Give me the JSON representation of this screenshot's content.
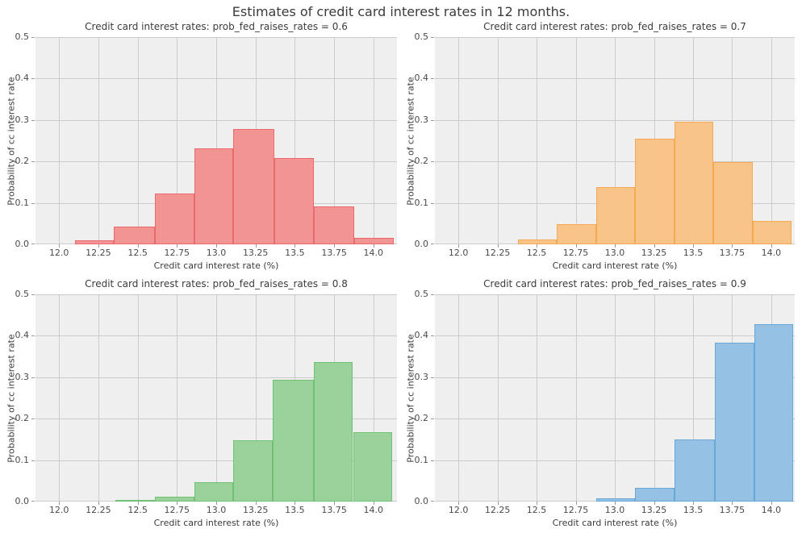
{
  "figure": {
    "title": "Estimates of credit card interest rates in 12 months.",
    "colors": {
      "background": "#ffffff",
      "plot_background": "#efefef",
      "grid": "#cbcbcb",
      "title_text": "#3b3b3b",
      "tick_text": "#4a4a4a"
    }
  },
  "axes": {
    "xlabel": "Credit card interest rate (%)",
    "ylabel": "Probability of cc interest rate",
    "xlim": [
      11.85,
      14.15
    ],
    "ylim": [
      0,
      0.5
    ],
    "xtick_values": [
      12.0,
      12.25,
      12.5,
      12.75,
      13.0,
      13.25,
      13.5,
      13.75,
      14.0
    ],
    "xtick_labels": [
      "12.0",
      "12.25",
      "12.5",
      "12.75",
      "13.0",
      "13.25",
      "13.5",
      "13.75",
      "14.0"
    ],
    "ytick_values": [
      0.0,
      0.1,
      0.2,
      0.3,
      0.4,
      0.5
    ],
    "ytick_labels": [
      "0.0",
      "0.1",
      "0.2",
      "0.3",
      "0.4",
      "0.5"
    ],
    "grid": true
  },
  "chart_data": [
    {
      "type": "histogram",
      "title": "Credit card interest rates: prob_fed_raises_rates = 0.6",
      "prob_fed_raises_rates": 0.6,
      "fill_color": "#f29394",
      "edge_color": "#ea696c",
      "bin_edges": [
        12.1,
        12.35,
        12.61,
        12.86,
        13.11,
        13.37,
        13.62,
        13.88,
        14.13
      ],
      "values": [
        0.01,
        0.042,
        0.123,
        0.232,
        0.278,
        0.209,
        0.091,
        0.016
      ],
      "xlabel": "Credit card interest rate (%)",
      "ylabel": "Probability of cc interest rate",
      "xlim": [
        11.85,
        14.15
      ],
      "ylim": [
        0,
        0.5
      ]
    },
    {
      "type": "histogram",
      "title": "Credit card interest rates: prob_fed_raises_rates = 0.7",
      "prob_fed_raises_rates": 0.7,
      "fill_color": "#f8c489",
      "edge_color": "#f5a952",
      "bin_edges": [
        12.38,
        12.63,
        12.88,
        13.13,
        13.38,
        13.63,
        13.88,
        14.13
      ],
      "values": [
        0.012,
        0.048,
        0.138,
        0.254,
        0.295,
        0.198,
        0.057
      ],
      "xlabel": "Credit card interest rate (%)",
      "ylabel": "Probability of cc interest rate",
      "xlim": [
        11.85,
        14.15
      ],
      "ylim": [
        0,
        0.5
      ]
    },
    {
      "type": "histogram",
      "title": "Credit card interest rates: prob_fed_raises_rates = 0.8",
      "prob_fed_raises_rates": 0.8,
      "fill_color": "#9bd29b",
      "edge_color": "#71c175",
      "bin_edges": [
        12.36,
        12.61,
        12.86,
        13.11,
        13.36,
        13.62,
        13.87,
        14.12
      ],
      "values": [
        0.004,
        0.012,
        0.047,
        0.148,
        0.294,
        0.337,
        0.168
      ],
      "xlabel": "Credit card interest rate (%)",
      "ylabel": "Probability of cc interest rate",
      "xlim": [
        11.85,
        14.15
      ],
      "ylim": [
        0,
        0.5
      ]
    },
    {
      "type": "histogram",
      "title": "Credit card interest rates: prob_fed_raises_rates = 0.9",
      "prob_fed_raises_rates": 0.9,
      "fill_color": "#95c1e4",
      "edge_color": "#68a7d6",
      "bin_edges": [
        12.88,
        13.13,
        13.38,
        13.64,
        13.89,
        14.14
      ],
      "values": [
        0.008,
        0.034,
        0.15,
        0.383,
        0.428
      ],
      "xlabel": "Credit card interest rate (%)",
      "ylabel": "Probability of cc interest rate",
      "xlim": [
        11.85,
        14.15
      ],
      "ylim": [
        0,
        0.5
      ]
    }
  ]
}
